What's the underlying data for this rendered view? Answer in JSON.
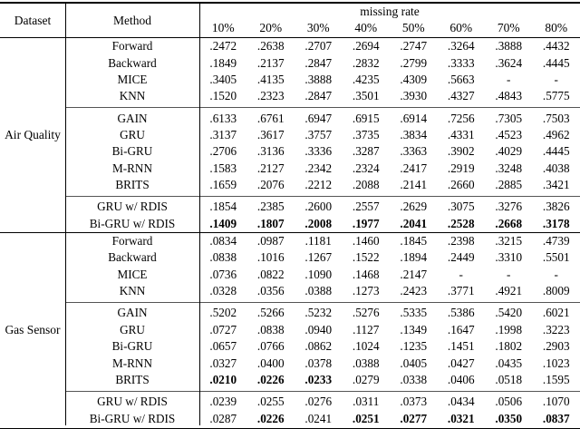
{
  "table": {
    "header": {
      "dataset": "Dataset",
      "method": "Method",
      "span_label": "missing rate",
      "rates": [
        "10%",
        "20%",
        "30%",
        "40%",
        "50%",
        "60%",
        "70%",
        "80%"
      ]
    },
    "sections": [
      {
        "dataset": "Air Quality",
        "groups": [
          {
            "rows": [
              {
                "method": "Forward",
                "values": [
                  ".2472",
                  ".2638",
                  ".2707",
                  ".2694",
                  ".2747",
                  ".3264",
                  ".3888",
                  ".4432"
                ],
                "bold": []
              },
              {
                "method": "Backward",
                "values": [
                  ".1849",
                  ".2137",
                  ".2847",
                  ".2832",
                  ".2799",
                  ".3333",
                  ".3624",
                  ".4445"
                ],
                "bold": []
              },
              {
                "method": "MICE",
                "values": [
                  ".3405",
                  ".4135",
                  ".3888",
                  ".4235",
                  ".4309",
                  ".5663",
                  "-",
                  "-"
                ],
                "bold": []
              },
              {
                "method": "KNN",
                "values": [
                  ".1520",
                  ".2323",
                  ".2847",
                  ".3501",
                  ".3930",
                  ".4327",
                  ".4843",
                  ".5775"
                ],
                "bold": []
              }
            ]
          },
          {
            "rows": [
              {
                "method": "GAIN",
                "values": [
                  ".6133",
                  ".6761",
                  ".6947",
                  ".6915",
                  ".6914",
                  ".7256",
                  ".7305",
                  ".7503"
                ],
                "bold": []
              },
              {
                "method": "GRU",
                "values": [
                  ".3137",
                  ".3617",
                  ".3757",
                  ".3735",
                  ".3834",
                  ".4331",
                  ".4523",
                  ".4962"
                ],
                "bold": []
              },
              {
                "method": "Bi-GRU",
                "values": [
                  ".2706",
                  ".3136",
                  ".3336",
                  ".3287",
                  ".3363",
                  ".3902",
                  ".4029",
                  ".4445"
                ],
                "bold": []
              },
              {
                "method": "M-RNN",
                "values": [
                  ".1583",
                  ".2127",
                  ".2342",
                  ".2324",
                  ".2417",
                  ".2919",
                  ".3248",
                  ".4038"
                ],
                "bold": []
              },
              {
                "method": "BRITS",
                "values": [
                  ".1659",
                  ".2076",
                  ".2212",
                  ".2088",
                  ".2141",
                  ".2660",
                  ".2885",
                  ".3421"
                ],
                "bold": []
              }
            ]
          },
          {
            "rows": [
              {
                "method": "GRU w/ RDIS",
                "values": [
                  ".1854",
                  ".2385",
                  ".2600",
                  ".2557",
                  ".2629",
                  ".3075",
                  ".3276",
                  ".3826"
                ],
                "bold": []
              },
              {
                "method": "Bi-GRU w/ RDIS",
                "values": [
                  ".1409",
                  ".1807",
                  ".2008",
                  ".1977",
                  ".2041",
                  ".2528",
                  ".2668",
                  ".3178"
                ],
                "bold": [
                  0,
                  1,
                  2,
                  3,
                  4,
                  5,
                  6,
                  7
                ]
              }
            ]
          }
        ]
      },
      {
        "dataset": "Gas Sensor",
        "groups": [
          {
            "rows": [
              {
                "method": "Forward",
                "values": [
                  ".0834",
                  ".0987",
                  ".1181",
                  ".1460",
                  ".1845",
                  ".2398",
                  ".3215",
                  ".4739"
                ],
                "bold": []
              },
              {
                "method": "Backward",
                "values": [
                  ".0838",
                  ".1016",
                  ".1267",
                  ".1522",
                  ".1894",
                  ".2449",
                  ".3310",
                  ".5501"
                ],
                "bold": []
              },
              {
                "method": "MICE",
                "values": [
                  ".0736",
                  ".0822",
                  ".1090",
                  ".1468",
                  ".2147",
                  "-",
                  "-",
                  "-"
                ],
                "bold": []
              },
              {
                "method": "KNN",
                "values": [
                  ".0328",
                  ".0356",
                  ".0388",
                  ".1273",
                  ".2423",
                  ".3771",
                  ".4921",
                  ".8009"
                ],
                "bold": []
              }
            ]
          },
          {
            "rows": [
              {
                "method": "GAIN",
                "values": [
                  ".5202",
                  ".5266",
                  ".5232",
                  ".5276",
                  ".5335",
                  ".5386",
                  ".5420",
                  ".6021"
                ],
                "bold": []
              },
              {
                "method": "GRU",
                "values": [
                  ".0727",
                  ".0838",
                  ".0940",
                  ".1127",
                  ".1349",
                  ".1647",
                  ".1998",
                  ".3223"
                ],
                "bold": []
              },
              {
                "method": "Bi-GRU",
                "values": [
                  ".0657",
                  ".0766",
                  ".0862",
                  ".1024",
                  ".1235",
                  ".1451",
                  ".1802",
                  ".2903"
                ],
                "bold": []
              },
              {
                "method": "M-RNN",
                "values": [
                  ".0327",
                  ".0400",
                  ".0378",
                  ".0388",
                  ".0405",
                  ".0427",
                  ".0435",
                  ".1023"
                ],
                "bold": []
              },
              {
                "method": "BRITS",
                "values": [
                  ".0210",
                  ".0226",
                  ".0233",
                  ".0279",
                  ".0338",
                  ".0406",
                  ".0518",
                  ".1595"
                ],
                "bold": [
                  0,
                  1,
                  2
                ]
              }
            ]
          },
          {
            "rows": [
              {
                "method": "GRU w/ RDIS",
                "values": [
                  ".0239",
                  ".0255",
                  ".0276",
                  ".0311",
                  ".0373",
                  ".0434",
                  ".0506",
                  ".1070"
                ],
                "bold": []
              },
              {
                "method": "Bi-GRU w/ RDIS",
                "values": [
                  ".0287",
                  ".0226",
                  ".0241",
                  ".0251",
                  ".0277",
                  ".0321",
                  ".0350",
                  ".0837"
                ],
                "bold": [
                  1,
                  3,
                  4,
                  5,
                  6,
                  7
                ]
              }
            ]
          }
        ]
      }
    ]
  }
}
